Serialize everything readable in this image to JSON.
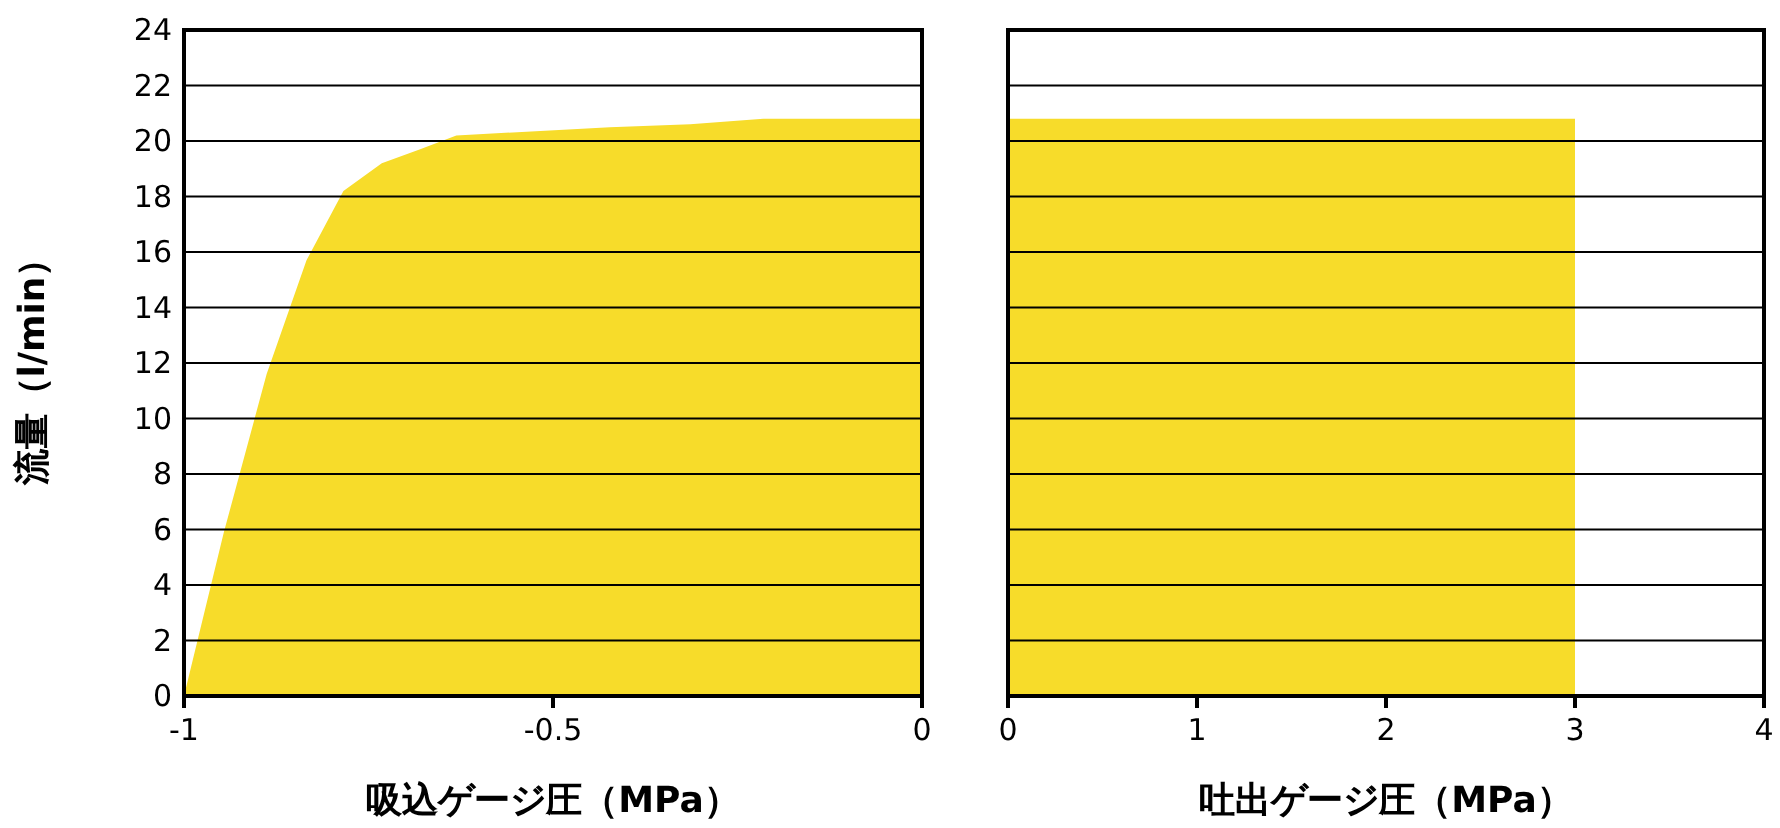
{
  "chart_data": [
    {
      "type": "area",
      "xlabel": "吸込ゲージ圧（MPa）",
      "ylabel": "流量（l/min）",
      "x": [
        -1,
        -0.946,
        -0.888,
        -0.834,
        -0.784,
        -0.732,
        -0.68,
        -0.631,
        -0.423,
        -0.314,
        -0.215,
        0
      ],
      "xlim": [
        -1,
        0
      ],
      "xticks": [
        -1,
        -0.5,
        0
      ],
      "ylim": [
        0,
        24
      ],
      "yticks": [
        0,
        2,
        4,
        6,
        8,
        10,
        12,
        14,
        16,
        18,
        20,
        22,
        24
      ],
      "grid": "y",
      "series": [
        {
          "color": "#f7dc2a",
          "values": [
            0,
            5.9,
            11.6,
            15.7,
            18.2,
            19.2,
            19.7,
            20.2,
            20.5,
            20.6,
            20.8,
            20.8
          ]
        }
      ]
    },
    {
      "type": "area",
      "xlabel": "吐出ゲージ圧（MPa）",
      "x": [
        0,
        3
      ],
      "xlim": [
        0,
        4
      ],
      "xticks": [
        0,
        1,
        2,
        3,
        4
      ],
      "ylim": [
        0,
        24
      ],
      "yticks": [
        0,
        2,
        4,
        6,
        8,
        10,
        12,
        14,
        16,
        18,
        20,
        22,
        24
      ],
      "grid": "y",
      "tick_labels": "x",
      "series": [
        {
          "color": "#f7dc2a",
          "values": [
            20.8,
            20.8
          ]
        }
      ]
    }
  ]
}
